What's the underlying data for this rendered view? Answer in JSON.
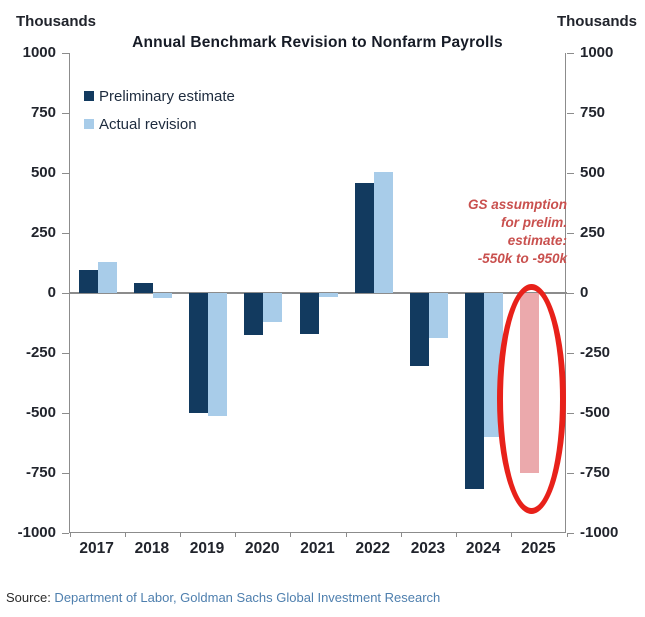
{
  "header": {
    "left_axis_unit": "Thousands",
    "right_axis_unit": "Thousands",
    "title": "Annual Benchmark Revision to Nonfarm Payrolls"
  },
  "legend": {
    "items": [
      {
        "label": "Preliminary estimate"
      },
      {
        "label": "Actual revision"
      }
    ]
  },
  "annotation": {
    "lines": [
      "GS assumption",
      "for prelim.",
      "estimate:",
      "-550k to -950k"
    ],
    "color": "#c9504e"
  },
  "source": {
    "prefix": "Source:",
    "text": " Department of Labor, Goldman Sachs Global Investment Research"
  },
  "chart_data": {
    "type": "bar",
    "title": "Annual Benchmark Revision to Nonfarm Payrolls",
    "ylabel": "Thousands",
    "ylim": [
      -1000,
      1000
    ],
    "ytick_step": 250,
    "grid": false,
    "legend_position": "top-left-inside",
    "categories": [
      "2017",
      "2018",
      "2019",
      "2020",
      "2021",
      "2022",
      "2023",
      "2024",
      "2025"
    ],
    "series": [
      {
        "name": "Preliminary estimate",
        "color": "#123a5f",
        "values": [
          95,
          40,
          -501,
          -175,
          -170,
          460,
          -306,
          -818,
          null
        ]
      },
      {
        "name": "Actual revision",
        "color": "#a8cce9",
        "values": [
          130,
          -20,
          -514,
          -120,
          -15,
          505,
          -187,
          -598,
          null
        ]
      },
      {
        "name": "GS assumption for preliminary estimate",
        "color": "#eba9ac",
        "values": [
          null,
          null,
          null,
          null,
          null,
          null,
          null,
          null,
          -750
        ]
      }
    ],
    "highlight": {
      "category": "2025",
      "annotation": "GS assumption for prelim. estimate: -550k to -950k",
      "assumption_range_thousands": [
        -550,
        -950
      ],
      "bar_value_plotted": -750
    }
  }
}
